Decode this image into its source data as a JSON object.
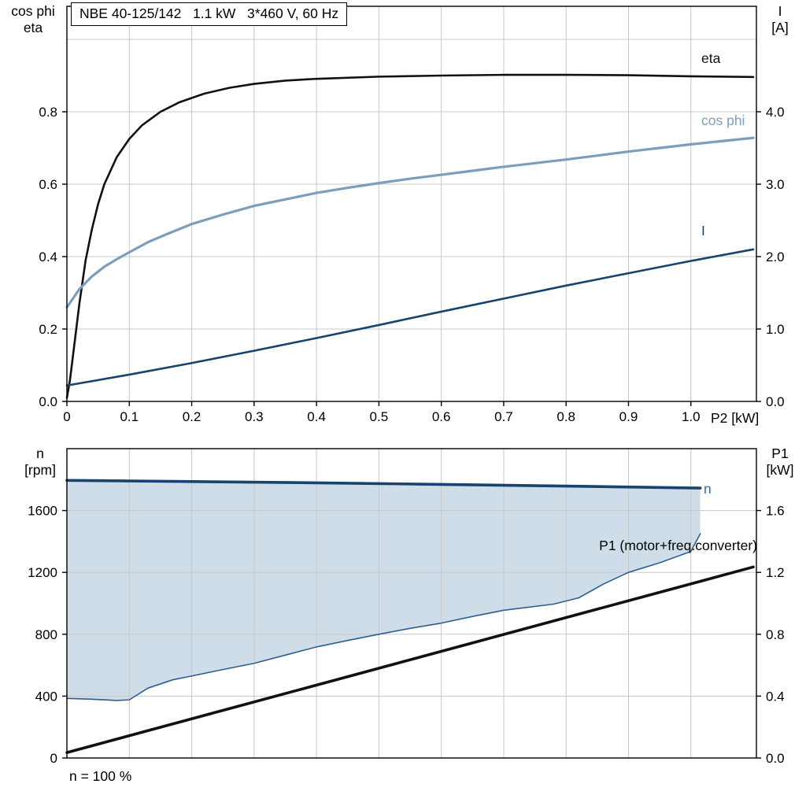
{
  "chart_data": {
    "top_chart": {
      "type": "line",
      "title": "NBE 40-125/142   1.1 kW   3*460 V, 60 Hz",
      "grid": true,
      "grid_color": "#c8c8c8",
      "x_axis": {
        "min": 0,
        "max": 1.105,
        "label": "P2 [kW]",
        "ticks": [
          {
            "v": 0,
            "label": "0"
          },
          {
            "v": 0.1,
            "label": "0.1"
          },
          {
            "v": 0.2,
            "label": "0.2"
          },
          {
            "v": 0.3,
            "label": "0.3"
          },
          {
            "v": 0.4,
            "label": "0.4"
          },
          {
            "v": 0.5,
            "label": "0.5"
          },
          {
            "v": 0.6,
            "label": "0.6"
          },
          {
            "v": 0.7,
            "label": "0.7"
          },
          {
            "v": 0.8,
            "label": "0.8"
          },
          {
            "v": 0.9,
            "label": "0.9"
          },
          {
            "v": 1.0,
            "label": "1.0"
          }
        ]
      },
      "y_left": {
        "min": 0,
        "max": 1.0913,
        "label_lines": [
          "cos phi",
          "eta"
        ],
        "ticks": [
          {
            "v": 0,
            "label": "0.0"
          },
          {
            "v": 0.2,
            "label": "0.2"
          },
          {
            "v": 0.4,
            "label": "0.4"
          },
          {
            "v": 0.6,
            "label": "0.6"
          },
          {
            "v": 0.8,
            "label": "0.8"
          }
        ],
        "grid_extra": [
          1.0
        ]
      },
      "y_right": {
        "min": 0,
        "max": 5.4565,
        "label_lines": [
          "I",
          "[A]"
        ],
        "ticks": [
          {
            "v": 0,
            "label": "0.0"
          },
          {
            "v": 1,
            "label": "1.0"
          },
          {
            "v": 2,
            "label": "2.0"
          },
          {
            "v": 3,
            "label": "3.0"
          },
          {
            "v": 4,
            "label": "4.0"
          }
        ]
      },
      "series": [
        {
          "name": "eta",
          "label": "eta",
          "axis": "left",
          "color": "#111111",
          "width": 2.6,
          "points": [
            [
              0,
              0.01
            ],
            [
              0.005,
              0.06
            ],
            [
              0.01,
              0.13
            ],
            [
              0.02,
              0.27
            ],
            [
              0.03,
              0.39
            ],
            [
              0.04,
              0.475
            ],
            [
              0.05,
              0.545
            ],
            [
              0.06,
              0.6
            ],
            [
              0.08,
              0.675
            ],
            [
              0.1,
              0.725
            ],
            [
              0.12,
              0.762
            ],
            [
              0.15,
              0.8
            ],
            [
              0.18,
              0.826
            ],
            [
              0.22,
              0.85
            ],
            [
              0.26,
              0.866
            ],
            [
              0.3,
              0.877
            ],
            [
              0.35,
              0.886
            ],
            [
              0.4,
              0.891
            ],
            [
              0.5,
              0.897
            ],
            [
              0.6,
              0.9
            ],
            [
              0.7,
              0.902
            ],
            [
              0.8,
              0.902
            ],
            [
              0.9,
              0.901
            ],
            [
              1.0,
              0.898
            ],
            [
              1.1,
              0.896
            ]
          ]
        },
        {
          "name": "cos_phi",
          "label": "cos phi",
          "axis": "left",
          "color": "#7e9dbd",
          "width": 3.2,
          "points": [
            [
              0,
              0.26
            ],
            [
              0.02,
              0.31
            ],
            [
              0.04,
              0.345
            ],
            [
              0.06,
              0.372
            ],
            [
              0.08,
              0.393
            ],
            [
              0.1,
              0.412
            ],
            [
              0.13,
              0.44
            ],
            [
              0.16,
              0.462
            ],
            [
              0.2,
              0.49
            ],
            [
              0.25,
              0.516
            ],
            [
              0.3,
              0.54
            ],
            [
              0.35,
              0.558
            ],
            [
              0.4,
              0.576
            ],
            [
              0.45,
              0.59
            ],
            [
              0.5,
              0.603
            ],
            [
              0.55,
              0.615
            ],
            [
              0.6,
              0.626
            ],
            [
              0.65,
              0.637
            ],
            [
              0.7,
              0.648
            ],
            [
              0.75,
              0.658
            ],
            [
              0.8,
              0.668
            ],
            [
              0.85,
              0.679
            ],
            [
              0.9,
              0.69
            ],
            [
              0.95,
              0.7
            ],
            [
              1.0,
              0.71
            ],
            [
              1.05,
              0.719
            ],
            [
              1.1,
              0.728
            ]
          ]
        },
        {
          "name": "I",
          "label": "I",
          "axis": "right",
          "color": "#17436e",
          "width": 2.6,
          "points": [
            [
              0,
              0.22
            ],
            [
              0.1,
              0.37
            ],
            [
              0.2,
              0.53
            ],
            [
              0.3,
              0.7
            ],
            [
              0.4,
              0.875
            ],
            [
              0.5,
              1.055
            ],
            [
              0.6,
              1.24
            ],
            [
              0.7,
              1.42
            ],
            [
              0.8,
              1.6
            ],
            [
              0.9,
              1.77
            ],
            [
              1.0,
              1.94
            ],
            [
              1.1,
              2.1
            ]
          ]
        }
      ]
    },
    "bottom_chart": {
      "type": "line",
      "grid": true,
      "grid_color": "#c8c8c8",
      "note": "n = 100 %",
      "x_axis": {
        "min": 0,
        "max": 1.105,
        "label": "",
        "show_labels": false,
        "ticks": [
          {
            "v": 0.1,
            "label": ""
          },
          {
            "v": 0.2,
            "label": ""
          },
          {
            "v": 0.3,
            "label": ""
          },
          {
            "v": 0.4,
            "label": ""
          },
          {
            "v": 0.5,
            "label": ""
          },
          {
            "v": 0.6,
            "label": ""
          },
          {
            "v": 0.7,
            "label": ""
          },
          {
            "v": 0.8,
            "label": ""
          },
          {
            "v": 0.9,
            "label": ""
          },
          {
            "v": 1.0,
            "label": ""
          }
        ]
      },
      "y_left": {
        "min": 0,
        "max": 2000,
        "label_lines": [
          "n",
          "[rpm]"
        ],
        "ticks": [
          {
            "v": 0,
            "label": "0"
          },
          {
            "v": 400,
            "label": "400"
          },
          {
            "v": 800,
            "label": "800"
          },
          {
            "v": 1200,
            "label": "1200"
          },
          {
            "v": 1600,
            "label": "1600"
          }
        ]
      },
      "y_right": {
        "min": 0,
        "max": 2.0,
        "label_lines": [
          "P1",
          "[kW]"
        ],
        "ticks": [
          {
            "v": 0,
            "label": "0.0"
          },
          {
            "v": 0.4,
            "label": "0.4"
          },
          {
            "v": 0.8,
            "label": "0.8"
          },
          {
            "v": 1.2,
            "label": "1.2"
          },
          {
            "v": 1.6,
            "label": "1.6"
          }
        ]
      },
      "bands": [
        {
          "upper": "n",
          "lower": "n_min",
          "color": "#cfdde9"
        }
      ],
      "series": [
        {
          "name": "n_min",
          "label": "",
          "axis": "left",
          "color": "#2e5f93",
          "width": 1.6,
          "points": [
            [
              0,
              385
            ],
            [
              0.04,
              380
            ],
            [
              0.08,
              372
            ],
            [
              0.1,
              376
            ],
            [
              0.13,
              452
            ],
            [
              0.17,
              506
            ],
            [
              0.2,
              530
            ],
            [
              0.25,
              572
            ],
            [
              0.3,
              612
            ],
            [
              0.35,
              665
            ],
            [
              0.4,
              718
            ],
            [
              0.45,
              760
            ],
            [
              0.5,
              800
            ],
            [
              0.55,
              838
            ],
            [
              0.6,
              872
            ],
            [
              0.65,
              915
            ],
            [
              0.7,
              955
            ],
            [
              0.74,
              975
            ],
            [
              0.78,
              995
            ],
            [
              0.82,
              1035
            ],
            [
              0.86,
              1125
            ],
            [
              0.9,
              1200
            ],
            [
              0.95,
              1262
            ],
            [
              1.0,
              1335
            ],
            [
              1.015,
              1450
            ]
          ]
        },
        {
          "name": "n",
          "label": "n",
          "label_color": "#2f6dab",
          "axis": "left",
          "color": "#17436e",
          "width": 3.6,
          "points": [
            [
              0,
              1795
            ],
            [
              0.2,
              1787
            ],
            [
              0.4,
              1779
            ],
            [
              0.6,
              1769
            ],
            [
              0.8,
              1758
            ],
            [
              1.0,
              1746
            ],
            [
              1.015,
              1745
            ]
          ]
        },
        {
          "name": "P1",
          "label": "P1 (motor+freq.converter)",
          "label_color": "#000000",
          "axis": "right",
          "color": "#111111",
          "width": 3.6,
          "points": [
            [
              0,
              0.035
            ],
            [
              1.1,
              1.235
            ]
          ]
        }
      ]
    }
  }
}
